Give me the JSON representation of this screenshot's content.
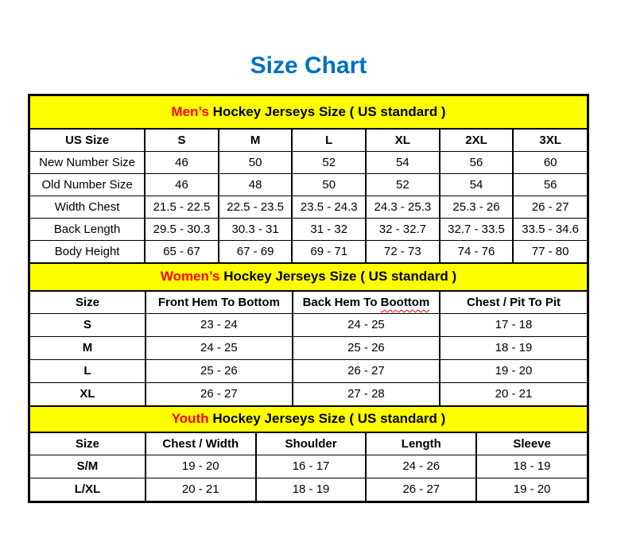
{
  "title": "Size Chart",
  "colors": {
    "title_blue": "#0070C0",
    "header_yellow": "#FFFF00",
    "highlight_red": "#FF0000",
    "border_black": "#000000",
    "page_bg": "#FFFFFF"
  },
  "sections": [
    {
      "name": "mens",
      "heading": {
        "highlight": "Men’s",
        "rest": " Hockey Jerseys Size ( US standard )"
      },
      "columns": [
        {
          "label": "US Size"
        },
        {
          "label": "S"
        },
        {
          "label": "M"
        },
        {
          "label": "L"
        },
        {
          "label": "XL"
        },
        {
          "label": "2XL"
        },
        {
          "label": "3XL"
        }
      ],
      "label_bold": false,
      "rows": [
        {
          "label": "New Number Size",
          "values": [
            "46",
            "50",
            "52",
            "54",
            "56",
            "60"
          ]
        },
        {
          "label": "Old Number Size",
          "values": [
            "46",
            "48",
            "50",
            "52",
            "54",
            "56"
          ]
        },
        {
          "label": "Width Chest",
          "values": [
            "21.5 - 22.5",
            "22.5 - 23.5",
            "23.5 - 24.3",
            "24.3 - 25.3",
            "25.3 - 26",
            "26 - 27"
          ]
        },
        {
          "label": "Back Length",
          "values": [
            "29.5 - 30.3",
            "30.3 - 31",
            "31 - 32",
            "32 - 32.7",
            "32.7 - 33.5",
            "33.5 - 34.6"
          ]
        },
        {
          "label": "Body Height",
          "values": [
            "65 - 67",
            "67 - 69",
            "69 - 71",
            "72 - 73",
            "74 - 76",
            "77 - 80"
          ]
        }
      ]
    },
    {
      "name": "womens",
      "heading": {
        "highlight": "Women’s",
        "rest": " Hockey Jerseys Size ( US standard )"
      },
      "columns": [
        {
          "label": "Size"
        },
        {
          "label": "Front Hem To Bottom"
        },
        {
          "label": "Back Hem To Boottom",
          "squiggle": "Boottom"
        },
        {
          "label": "Chest / Pit To Pit"
        }
      ],
      "label_bold": true,
      "rows": [
        {
          "label": "S",
          "values": [
            "23 - 24",
            "24 - 25",
            "17 - 18"
          ]
        },
        {
          "label": "M",
          "values": [
            "24 - 25",
            "25 - 26",
            "18 - 19"
          ]
        },
        {
          "label": "L",
          "values": [
            "25 - 26",
            "26 - 27",
            "19 - 20"
          ]
        },
        {
          "label": "XL",
          "values": [
            "26 - 27",
            "27 - 28",
            "20 - 21"
          ]
        }
      ]
    },
    {
      "name": "youth",
      "heading": {
        "highlight": "Youth",
        "rest": " Hockey Jerseys Size ( US standard )"
      },
      "columns": [
        {
          "label": "Size"
        },
        {
          "label": "Chest / Width"
        },
        {
          "label": "Shoulder"
        },
        {
          "label": "Length"
        },
        {
          "label": "Sleeve"
        }
      ],
      "label_bold": true,
      "rows": [
        {
          "label": "S/M",
          "values": [
            "19 - 20",
            "16 - 17",
            "24 - 26",
            "18 - 19"
          ]
        },
        {
          "label": "L/XL",
          "values": [
            "20 - 21",
            "18 - 19",
            "26 - 27",
            "19 - 20"
          ]
        }
      ]
    }
  ]
}
